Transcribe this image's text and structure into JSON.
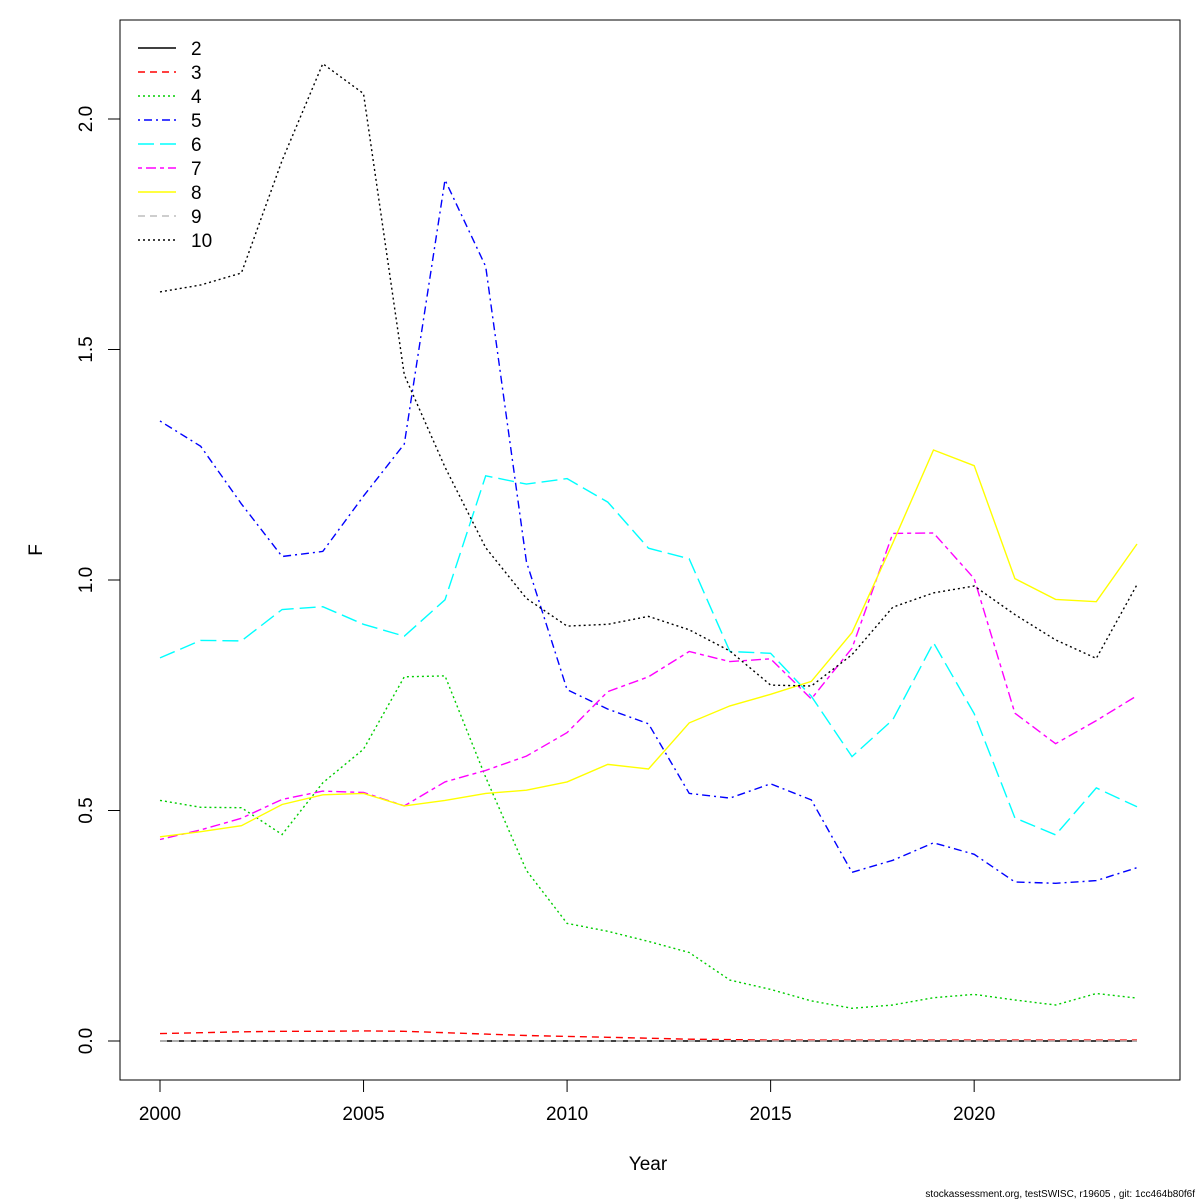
{
  "chart_data": {
    "type": "line",
    "xlabel": "Year",
    "ylabel": "F",
    "xlim": [
      2000,
      2024
    ],
    "ylim": [
      0,
      2.15
    ],
    "xticks": [
      2000,
      2005,
      2010,
      2015,
      2020
    ],
    "xtick_labels": [
      "2000",
      "2005",
      "2010",
      "2015",
      "2020"
    ],
    "yticks": [
      0,
      0.5,
      1,
      1.5,
      2
    ],
    "ytick_labels": [
      "0.0",
      "0.5",
      "1.0",
      "1.5",
      "2.0"
    ],
    "grid": false,
    "legend_position": "top-left",
    "x": [
      2000,
      2001,
      2002,
      2003,
      2004,
      2005,
      2006,
      2007,
      2008,
      2009,
      2010,
      2011,
      2012,
      2013,
      2014,
      2015,
      2016,
      2017,
      2018,
      2019,
      2020,
      2021,
      2022,
      2023,
      2024
    ],
    "series": [
      {
        "name": "2",
        "color": "#000000",
        "dash": "solid",
        "values": [
          0,
          0,
          0,
          0,
          0,
          0,
          0,
          0,
          0,
          0,
          0,
          0,
          0,
          0,
          0,
          0,
          0,
          0,
          0,
          0,
          0,
          0,
          0,
          0,
          0
        ]
      },
      {
        "name": "3",
        "color": "#ff0000",
        "dash": "dashed",
        "values": [
          0.016,
          0.018,
          0.02,
          0.021,
          0.021,
          0.022,
          0.021,
          0.018,
          0.015,
          0.012,
          0.01,
          0.008,
          0.006,
          0.004,
          0.003,
          0.002,
          0.002,
          0.002,
          0.002,
          0.002,
          0.002,
          0.002,
          0.002,
          0.002,
          0.002
        ]
      },
      {
        "name": "4",
        "color": "#00cd00",
        "dash": "dotted",
        "values": [
          0.522,
          0.507,
          0.506,
          0.448,
          0.56,
          0.633,
          0.79,
          0.792,
          0.572,
          0.37,
          0.255,
          0.238,
          0.216,
          0.192,
          0.132,
          0.112,
          0.087,
          0.071,
          0.078,
          0.094,
          0.101,
          0.089,
          0.078,
          0.103,
          0.093
        ]
      },
      {
        "name": "5",
        "color": "#0000ff",
        "dash": "dotdash",
        "values": [
          1.345,
          1.29,
          1.165,
          1.051,
          1.062,
          1.182,
          1.295,
          1.868,
          1.68,
          1.04,
          0.762,
          0.72,
          0.688,
          0.537,
          0.527,
          0.558,
          0.523,
          0.366,
          0.392,
          0.43,
          0.405,
          0.345,
          0.342,
          0.348,
          0.376
        ]
      },
      {
        "name": "6",
        "color": "#00ffff",
        "dash": "longdash",
        "values": [
          0.831,
          0.869,
          0.868,
          0.936,
          0.942,
          0.904,
          0.878,
          0.957,
          1.226,
          1.208,
          1.22,
          1.169,
          1.069,
          1.046,
          0.845,
          0.841,
          0.748,
          0.617,
          0.697,
          0.864,
          0.71,
          0.484,
          0.447,
          0.549,
          0.508
        ]
      },
      {
        "name": "7",
        "color": "#ff00ff",
        "dash": "twodash",
        "values": [
          0.437,
          0.458,
          0.483,
          0.524,
          0.542,
          0.539,
          0.51,
          0.562,
          0.587,
          0.618,
          0.669,
          0.758,
          0.79,
          0.845,
          0.823,
          0.829,
          0.742,
          0.852,
          1.101,
          1.102,
          1.003,
          0.711,
          0.645,
          0.695,
          0.749
        ]
      },
      {
        "name": "8",
        "color": "#ffff00",
        "dash": "solid",
        "values": [
          0.443,
          0.454,
          0.467,
          0.513,
          0.534,
          0.537,
          0.51,
          0.522,
          0.537,
          0.544,
          0.562,
          0.6,
          0.59,
          0.69,
          0.727,
          0.752,
          0.78,
          0.886,
          1.08,
          1.282,
          1.248,
          1.003,
          0.958,
          0.953,
          1.078
        ]
      },
      {
        "name": "9",
        "color": "#bebebe",
        "dash": "dashed",
        "values": [
          0,
          0,
          0,
          0,
          0,
          0,
          0,
          0,
          0,
          0,
          0,
          0,
          0,
          0,
          0,
          0,
          0,
          0,
          0,
          0,
          0,
          0,
          0,
          0,
          0
        ]
      },
      {
        "name": "10",
        "color": "#000000",
        "dash": "dotted",
        "values": [
          1.625,
          1.64,
          1.666,
          1.91,
          2.12,
          2.055,
          1.445,
          1.245,
          1.07,
          0.96,
          0.9,
          0.904,
          0.921,
          0.892,
          0.846,
          0.772,
          0.77,
          0.838,
          0.941,
          0.972,
          0.987,
          0.925,
          0.87,
          0.83,
          0.99
        ]
      }
    ]
  },
  "footer": "stockassessment.org, testSWISC, r19605 , git: 1cc464b80f6f"
}
